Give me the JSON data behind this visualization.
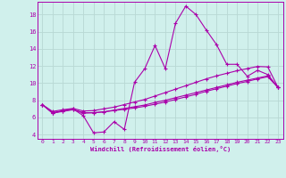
{
  "x_data": [
    0,
    1,
    2,
    3,
    4,
    5,
    6,
    7,
    8,
    9,
    10,
    11,
    12,
    13,
    14,
    15,
    16,
    17,
    18,
    19,
    20,
    21,
    22,
    23
  ],
  "series1": [
    7.5,
    6.5,
    6.8,
    7.0,
    6.2,
    4.2,
    4.3,
    5.5,
    4.6,
    10.1,
    11.7,
    14.4,
    11.7,
    17.0,
    19.0,
    18.0,
    16.2,
    14.5,
    12.2,
    12.2,
    10.8,
    11.5,
    11.0,
    9.5
  ],
  "series2": [
    7.5,
    6.5,
    6.7,
    6.9,
    6.5,
    6.55,
    6.65,
    6.8,
    6.95,
    7.1,
    7.3,
    7.55,
    7.8,
    8.1,
    8.4,
    8.7,
    9.05,
    9.35,
    9.65,
    9.95,
    10.2,
    10.5,
    10.75,
    9.5
  ],
  "series3": [
    7.5,
    6.7,
    6.9,
    7.05,
    6.75,
    6.8,
    7.0,
    7.2,
    7.5,
    7.8,
    8.1,
    8.5,
    8.9,
    9.3,
    9.7,
    10.1,
    10.5,
    10.85,
    11.15,
    11.45,
    11.7,
    11.95,
    11.9,
    9.5
  ],
  "series4": [
    7.5,
    6.55,
    6.75,
    6.95,
    6.55,
    6.55,
    6.65,
    6.85,
    7.05,
    7.25,
    7.45,
    7.75,
    8.0,
    8.3,
    8.6,
    8.9,
    9.2,
    9.5,
    9.8,
    10.1,
    10.35,
    10.6,
    10.85,
    9.5
  ],
  "line_color": "#aa00aa",
  "bg_color": "#d0f0ec",
  "grid_color": "#b8d8d4",
  "ylabel_values": [
    4,
    6,
    8,
    10,
    12,
    14,
    16,
    18
  ],
  "xlabel_values": [
    0,
    1,
    2,
    3,
    4,
    5,
    6,
    7,
    8,
    9,
    10,
    11,
    12,
    13,
    14,
    15,
    16,
    17,
    18,
    19,
    20,
    21,
    22,
    23
  ],
  "xlabel_label": "Windchill (Refroidissement éolien,°C)",
  "ylim": [
    3.5,
    19.5
  ],
  "xlim": [
    -0.5,
    23.5
  ],
  "figwidth": 3.2,
  "figheight": 2.0,
  "dpi": 100
}
